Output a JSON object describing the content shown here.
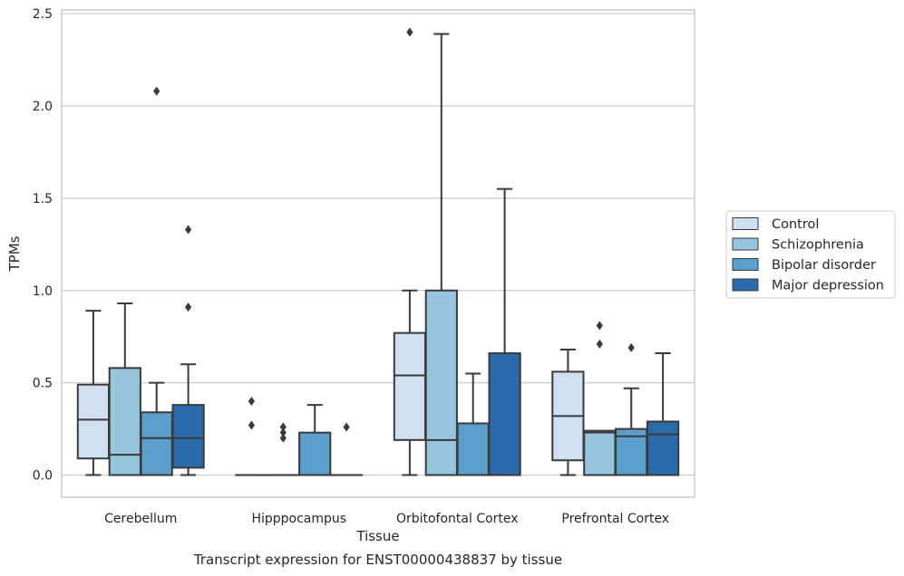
{
  "colors": {
    "Control": "#d0e0f1",
    "Schizophrenia": "#97c4de",
    "Bipolar disorder": "#5b9fcd",
    "Major depression": "#2a6bab",
    "line": "#3a3a3a",
    "grid": "#cccccc",
    "frame": "#cccccc"
  },
  "chart_data": {
    "type": "box",
    "title": "Transcript expression for ENST00000438837 by tissue",
    "xlabel": "Tissue",
    "ylabel": "TPMs",
    "ylim": [
      -0.12,
      2.52
    ],
    "yticks": [
      0.0,
      0.5,
      1.0,
      1.5,
      2.0,
      2.5
    ],
    "ytick_labels": [
      "0.0",
      "0.5",
      "1.0",
      "1.5",
      "2.0",
      "2.5"
    ],
    "grid": true,
    "legend_position": "right",
    "categories": [
      "Cerebellum",
      "Hipppocampus",
      "Orbitofontal Cortex",
      "Prefrontal Cortex"
    ],
    "series": [
      {
        "name": "Control",
        "boxes": [
          {
            "whislo": 0.0,
            "q1": 0.09,
            "med": 0.3,
            "q3": 0.49,
            "whishi": 0.89,
            "fliers": []
          },
          {
            "whislo": 0.0,
            "q1": 0.0,
            "med": 0.0,
            "q3": 0.0,
            "whishi": 0.0,
            "fliers": [
              0.27,
              0.4
            ]
          },
          {
            "whislo": 0.0,
            "q1": 0.19,
            "med": 0.54,
            "q3": 0.77,
            "whishi": 1.0,
            "fliers": [
              2.4
            ]
          },
          {
            "whislo": 0.0,
            "q1": 0.08,
            "med": 0.32,
            "q3": 0.56,
            "whishi": 0.68,
            "fliers": []
          }
        ]
      },
      {
        "name": "Schizophrenia",
        "boxes": [
          {
            "whislo": 0.0,
            "q1": 0.0,
            "med": 0.11,
            "q3": 0.58,
            "whishi": 0.93,
            "fliers": []
          },
          {
            "whislo": 0.0,
            "q1": 0.0,
            "med": 0.0,
            "q3": 0.0,
            "whishi": 0.0,
            "fliers": [
              0.2,
              0.23,
              0.26
            ]
          },
          {
            "whislo": 0.0,
            "q1": 0.0,
            "med": 0.19,
            "q3": 1.0,
            "whishi": 2.39,
            "fliers": []
          },
          {
            "whislo": 0.0,
            "q1": 0.0,
            "med": 0.23,
            "q3": 0.24,
            "whishi": 0.24,
            "fliers": [
              0.71,
              0.81
            ]
          }
        ]
      },
      {
        "name": "Bipolar disorder",
        "boxes": [
          {
            "whislo": 0.0,
            "q1": 0.0,
            "med": 0.2,
            "q3": 0.34,
            "whishi": 0.5,
            "fliers": [
              2.08
            ]
          },
          {
            "whislo": 0.0,
            "q1": 0.0,
            "med": 0.0,
            "q3": 0.23,
            "whishi": 0.38,
            "fliers": []
          },
          {
            "whislo": 0.0,
            "q1": 0.0,
            "med": 0.0,
            "q3": 0.28,
            "whishi": 0.55,
            "fliers": []
          },
          {
            "whislo": 0.0,
            "q1": 0.0,
            "med": 0.21,
            "q3": 0.25,
            "whishi": 0.47,
            "fliers": [
              0.69
            ]
          }
        ]
      },
      {
        "name": "Major depression",
        "boxes": [
          {
            "whislo": 0.0,
            "q1": 0.04,
            "med": 0.2,
            "q3": 0.38,
            "whishi": 0.6,
            "fliers": [
              0.91,
              1.33
            ]
          },
          {
            "whislo": 0.0,
            "q1": 0.0,
            "med": 0.0,
            "q3": 0.0,
            "whishi": 0.0,
            "fliers": [
              0.26
            ]
          },
          {
            "whislo": 0.0,
            "q1": 0.0,
            "med": 0.0,
            "q3": 0.66,
            "whishi": 1.55,
            "fliers": []
          },
          {
            "whislo": 0.0,
            "q1": 0.0,
            "med": 0.22,
            "q3": 0.29,
            "whishi": 0.66,
            "fliers": []
          }
        ]
      }
    ]
  }
}
